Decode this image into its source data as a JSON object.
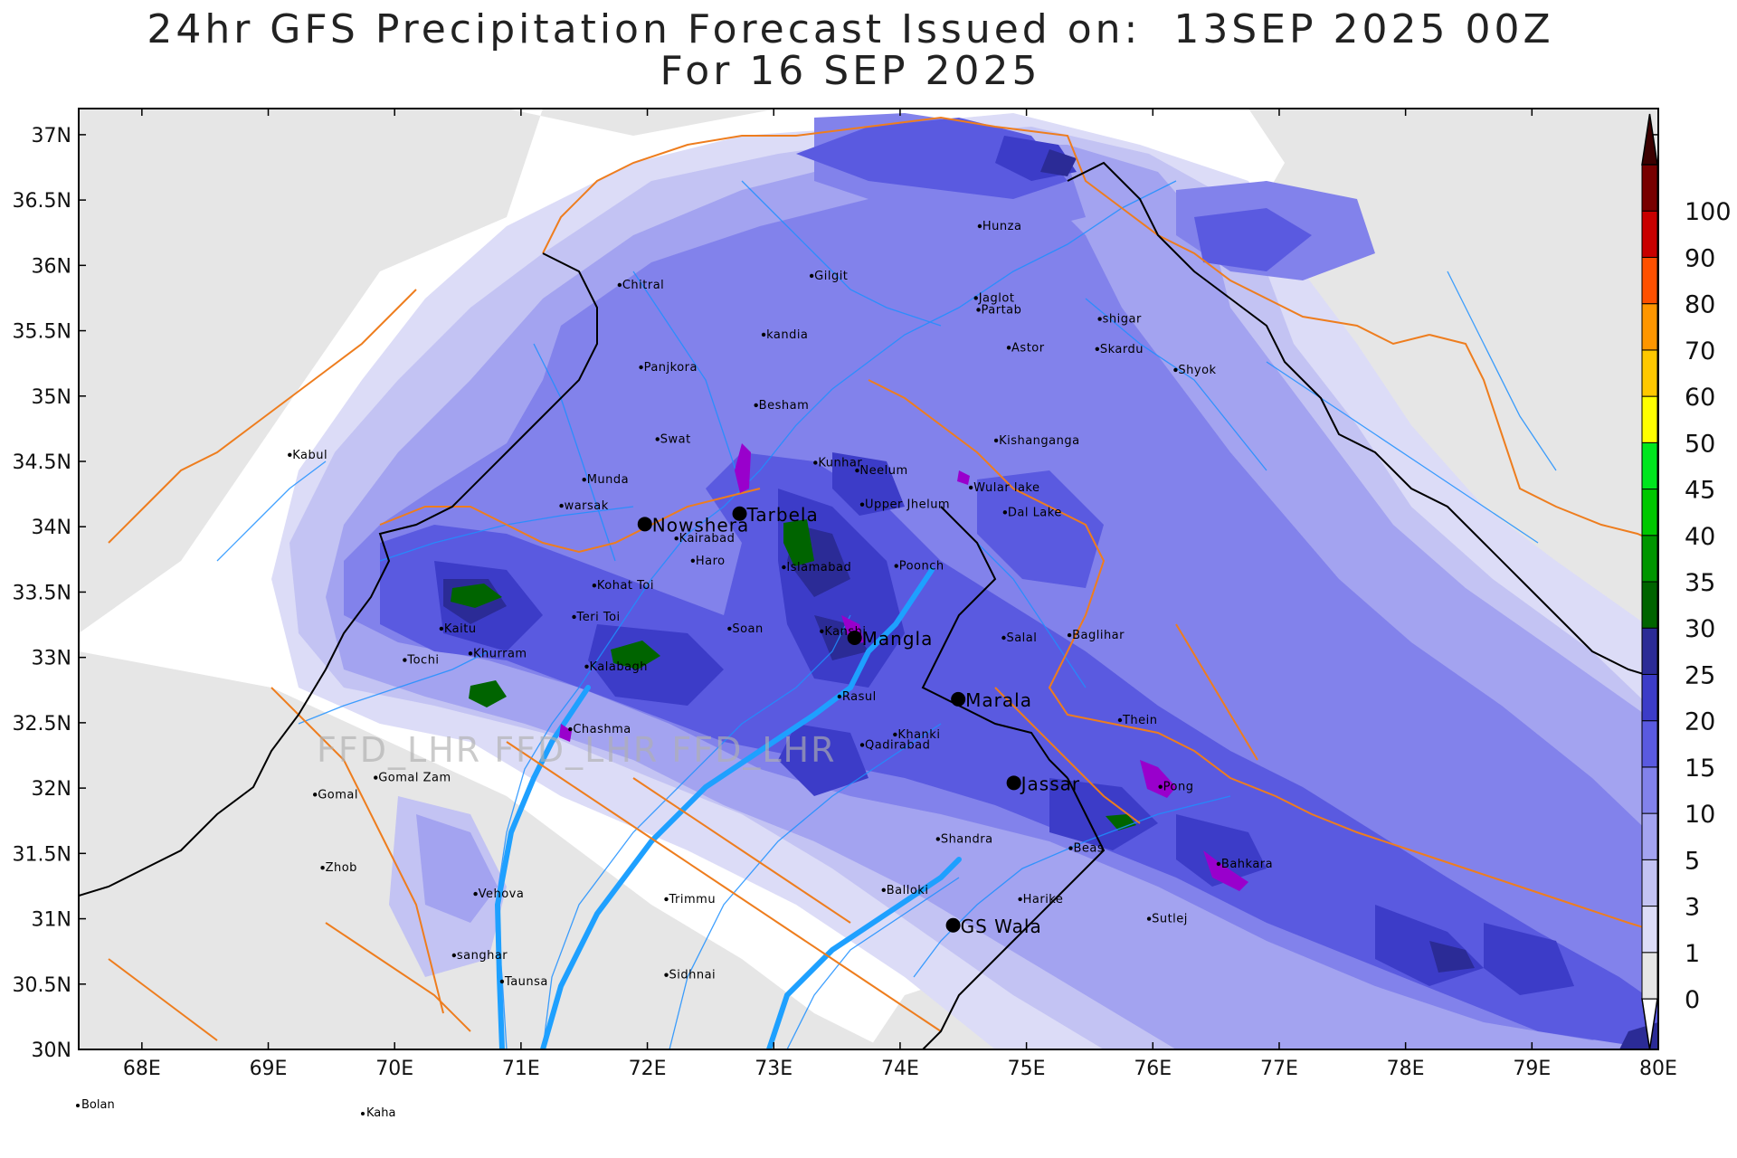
{
  "title": {
    "line1": "24hr GFS Precipitation Forecast Issued on:  13SEP 2025 00Z",
    "line2": "For 16 SEP 2025"
  },
  "axes": {
    "lat_labels": [
      "37N",
      "36.5N",
      "36N",
      "35.5N",
      "35N",
      "34.5N",
      "34N",
      "33.5N",
      "33N",
      "32.5N",
      "32N",
      "31.5N",
      "31N",
      "30.5N",
      "30N"
    ],
    "lon_labels": [
      "68E",
      "69E",
      "70E",
      "71E",
      "72E",
      "73E",
      "74E",
      "75E",
      "76E",
      "77E",
      "78E",
      "79E",
      "80E"
    ],
    "lat_range": [
      30,
      37.2
    ],
    "lon_range": [
      67.5,
      80
    ]
  },
  "watermark": "FFD_LHR FFD_LHR FFD_LHR",
  "colorbar": {
    "labels": [
      "0",
      "1",
      "3",
      "5",
      "10",
      "15",
      "20",
      "25",
      "30",
      "35",
      "40",
      "45",
      "50",
      "60",
      "70",
      "80",
      "90",
      "100"
    ],
    "colors": [
      "#e6e6e6",
      "#dcdcf7",
      "#c3c3f3",
      "#a3a3f0",
      "#8282eb",
      "#5a5ae0",
      "#3c3cc8",
      "#2b2b96",
      "#006400",
      "#009600",
      "#00c800",
      "#00e61e",
      "#ffff00",
      "#ffc800",
      "#ff9600",
      "#ff5000",
      "#c80000",
      "#780000",
      "#3c0000"
    ],
    "under_color": "#ffffff",
    "over_color": "#3c0000"
  },
  "cities": [
    {
      "name": "Gilgit",
      "lon": 73.3,
      "lat": 35.92,
      "major": false
    },
    {
      "name": "Hunza",
      "lon": 74.63,
      "lat": 36.3,
      "major": false
    },
    {
      "name": "Jaglot",
      "lon": 74.6,
      "lat": 35.75,
      "major": false
    },
    {
      "name": "Partab",
      "lon": 74.62,
      "lat": 35.66,
      "major": false
    },
    {
      "name": "Chitral",
      "lon": 71.78,
      "lat": 35.85,
      "major": false
    },
    {
      "name": "kandia",
      "lon": 72.92,
      "lat": 35.47,
      "major": false
    },
    {
      "name": "shigar",
      "lon": 75.58,
      "lat": 35.59,
      "major": false
    },
    {
      "name": "Astor",
      "lon": 74.86,
      "lat": 35.37,
      "major": false
    },
    {
      "name": "Skardu",
      "lon": 75.56,
      "lat": 35.36,
      "major": false
    },
    {
      "name": "Shyok",
      "lon": 76.18,
      "lat": 35.2,
      "major": false
    },
    {
      "name": "Panjkora",
      "lon": 71.95,
      "lat": 35.22,
      "major": false
    },
    {
      "name": "Besham",
      "lon": 72.86,
      "lat": 34.93,
      "major": false
    },
    {
      "name": "Swat",
      "lon": 72.08,
      "lat": 34.67,
      "major": false
    },
    {
      "name": "Kishanganga",
      "lon": 74.76,
      "lat": 34.66,
      "major": false
    },
    {
      "name": "Kabul",
      "lon": 69.17,
      "lat": 34.55,
      "major": false
    },
    {
      "name": "Kunhar",
      "lon": 73.33,
      "lat": 34.49,
      "major": false
    },
    {
      "name": "Neelum",
      "lon": 73.66,
      "lat": 34.43,
      "major": false
    },
    {
      "name": "Munda",
      "lon": 71.5,
      "lat": 34.36,
      "major": false
    },
    {
      "name": "Wular lake",
      "lon": 74.56,
      "lat": 34.3,
      "major": false
    },
    {
      "name": "warsak",
      "lon": 71.32,
      "lat": 34.16,
      "major": false
    },
    {
      "name": "Upper Jhelum",
      "lon": 73.7,
      "lat": 34.17,
      "major": false
    },
    {
      "name": "Dal Lake",
      "lon": 74.83,
      "lat": 34.11,
      "major": false
    },
    {
      "name": "Nowshera",
      "lon": 71.98,
      "lat": 34.02,
      "major": true
    },
    {
      "name": "Tarbela",
      "lon": 72.73,
      "lat": 34.1,
      "major": true
    },
    {
      "name": "Kairabad",
      "lon": 72.23,
      "lat": 33.91,
      "major": false
    },
    {
      "name": "Haro",
      "lon": 72.36,
      "lat": 33.74,
      "major": false
    },
    {
      "name": "Islamabad",
      "lon": 73.08,
      "lat": 33.69,
      "major": false
    },
    {
      "name": "Poonch",
      "lon": 73.97,
      "lat": 33.7,
      "major": false
    },
    {
      "name": "Kohat Toi",
      "lon": 71.58,
      "lat": 33.55,
      "major": false
    },
    {
      "name": "Teri Toi",
      "lon": 71.42,
      "lat": 33.31,
      "major": false
    },
    {
      "name": "Kaitu",
      "lon": 70.37,
      "lat": 33.22,
      "major": false
    },
    {
      "name": "Soan",
      "lon": 72.65,
      "lat": 33.22,
      "major": false
    },
    {
      "name": "Kanshi",
      "lon": 73.38,
      "lat": 33.2,
      "major": false
    },
    {
      "name": "Mangla",
      "lon": 73.64,
      "lat": 33.15,
      "major": true
    },
    {
      "name": "Salal",
      "lon": 74.82,
      "lat": 33.15,
      "major": false
    },
    {
      "name": "Baglihar",
      "lon": 75.34,
      "lat": 33.17,
      "major": false
    },
    {
      "name": "Tochi",
      "lon": 70.08,
      "lat": 32.98,
      "major": false
    },
    {
      "name": "Khurram",
      "lon": 70.6,
      "lat": 33.03,
      "major": false
    },
    {
      "name": "Kalabagh",
      "lon": 71.52,
      "lat": 32.93,
      "major": false
    },
    {
      "name": "Rasul",
      "lon": 73.52,
      "lat": 32.7,
      "major": false
    },
    {
      "name": "Marala",
      "lon": 74.46,
      "lat": 32.68,
      "major": true
    },
    {
      "name": "Thein",
      "lon": 75.74,
      "lat": 32.52,
      "major": false
    },
    {
      "name": "Chashma",
      "lon": 71.39,
      "lat": 32.45,
      "major": false
    },
    {
      "name": "Khanki",
      "lon": 73.96,
      "lat": 32.41,
      "major": false
    },
    {
      "name": "Qadirabad",
      "lon": 73.7,
      "lat": 32.33,
      "major": false
    },
    {
      "name": "Gomal Zam",
      "lon": 69.85,
      "lat": 32.08,
      "major": false
    },
    {
      "name": "Jassar",
      "lon": 74.9,
      "lat": 32.04,
      "major": true
    },
    {
      "name": "Pong",
      "lon": 76.06,
      "lat": 32.01,
      "major": false
    },
    {
      "name": "Gomal",
      "lon": 69.37,
      "lat": 31.95,
      "major": false
    },
    {
      "name": "Shandra",
      "lon": 74.3,
      "lat": 31.61,
      "major": false
    },
    {
      "name": "Beas",
      "lon": 75.35,
      "lat": 31.54,
      "major": false
    },
    {
      "name": "Zhob",
      "lon": 69.43,
      "lat": 31.39,
      "major": false
    },
    {
      "name": "Bahkara",
      "lon": 76.52,
      "lat": 31.42,
      "major": false
    },
    {
      "name": "Vehova",
      "lon": 70.64,
      "lat": 31.19,
      "major": false
    },
    {
      "name": "Balloki",
      "lon": 73.87,
      "lat": 31.22,
      "major": false
    },
    {
      "name": "Trimmu",
      "lon": 72.15,
      "lat": 31.15,
      "major": false
    },
    {
      "name": "Harike",
      "lon": 74.95,
      "lat": 31.15,
      "major": false
    },
    {
      "name": "GS Wala",
      "lon": 74.42,
      "lat": 30.95,
      "major": true
    },
    {
      "name": "Sutlej",
      "lon": 75.97,
      "lat": 31.0,
      "major": false
    },
    {
      "name": "sanghar",
      "lon": 70.47,
      "lat": 30.72,
      "major": false
    },
    {
      "name": "Sidhnai",
      "lon": 72.15,
      "lat": 30.57,
      "major": false
    },
    {
      "name": "Taunsa",
      "lon": 70.85,
      "lat": 30.52,
      "major": false
    }
  ],
  "outside_labels": [
    {
      "name": "Bolan"
    },
    {
      "name": "Kaha"
    }
  ]
}
